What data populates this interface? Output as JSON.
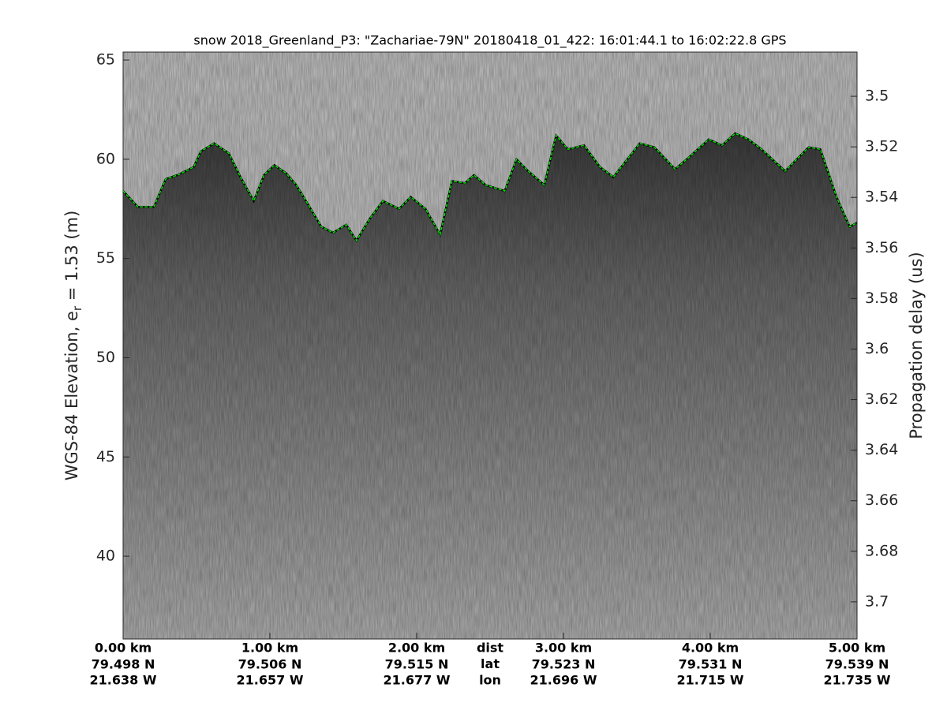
{
  "chart_data": {
    "type": "echogram",
    "title": "snow 2018_Greenland_P3: \"Zachariae-79N\"  20180418_01_422: 16:01:44.1 to 16:02:22.8 GPS",
    "ylabel": "WGS-84 Elevation, e",
    "ylabel_sub": "r",
    "ylabel_end": " = 1.53 (m)",
    "y2label": "Propagation delay (us)",
    "xlim": [
      0,
      5
    ],
    "xticks": [
      {
        "value": 0,
        "label": "0.00 km"
      },
      {
        "value": 1,
        "label": "1.00 km"
      },
      {
        "value": 2,
        "label": "2.00 km"
      },
      {
        "value": 3,
        "label": "3.00 km"
      },
      {
        "value": 4,
        "label": "4.00 km"
      },
      {
        "value": 5,
        "label": "5.00 km"
      }
    ],
    "lat_labels": [
      "79.498 N",
      "79.506 N",
      "79.515 N",
      "79.523 N",
      "79.531 N",
      "79.539 N"
    ],
    "lon_labels": [
      "21.638 W",
      "21.657 W",
      "21.677 W",
      "21.696 W",
      "21.715 W",
      "21.735 W"
    ],
    "row_labels": [
      "dist",
      "lat",
      "lon"
    ],
    "ylim": [
      35.83,
      65.4
    ],
    "yticks": [
      40,
      45,
      50,
      55,
      60,
      65
    ],
    "y2lim": [
      3.7147,
      3.4825
    ],
    "y2ticks": [
      3.5,
      3.52,
      3.54,
      3.56,
      3.58,
      3.6,
      3.62,
      3.64,
      3.66,
      3.68,
      3.7
    ],
    "series": [
      {
        "color": "#00e000",
        "x": [
          0,
          0.1,
          0.21,
          0.29,
          0.37,
          0.48,
          0.53,
          0.62,
          0.72,
          0.8,
          0.89,
          0.96,
          1.03,
          1.11,
          1.18,
          1.27,
          1.35,
          1.43,
          1.52,
          1.59,
          1.68,
          1.77,
          1.88,
          1.96,
          2.06,
          2.16,
          2.24,
          2.33,
          2.39,
          2.47,
          2.6,
          2.68,
          2.76,
          2.87,
          2.95,
          3.03,
          3.14,
          3.25,
          3.34,
          3.52,
          3.62,
          3.76,
          3.84,
          3.99,
          4.08,
          4.17,
          4.26,
          4.35,
          4.51,
          4.67,
          4.75,
          4.86,
          4.95,
          5.0
        ],
        "values": [
          58.4,
          57.6,
          57.6,
          59.0,
          59.2,
          59.6,
          60.4,
          60.8,
          60.3,
          59.1,
          57.9,
          59.2,
          59.7,
          59.3,
          58.7,
          57.6,
          56.6,
          56.3,
          56.7,
          55.9,
          57.0,
          57.9,
          57.5,
          58.1,
          57.5,
          56.2,
          58.9,
          58.8,
          59.2,
          58.7,
          58.4,
          60.0,
          59.4,
          58.7,
          61.2,
          60.5,
          60.7,
          59.6,
          59.1,
          60.8,
          60.6,
          59.5,
          60.0,
          61.0,
          60.7,
          61.3,
          61.0,
          60.5,
          59.4,
          60.6,
          60.5,
          58.1,
          56.6,
          56.8
        ]
      }
    ]
  }
}
